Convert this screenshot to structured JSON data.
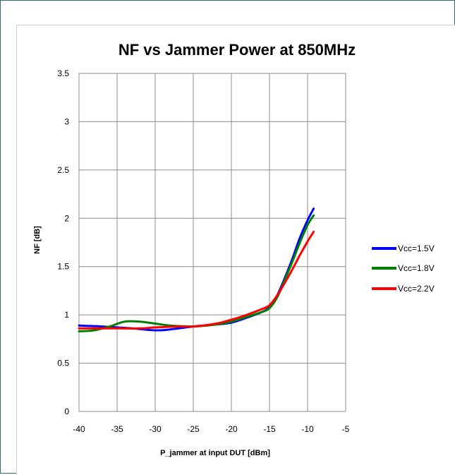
{
  "chart_data": {
    "type": "line",
    "title": "NF vs Jammer Power at 850MHz",
    "xlabel": "P_jammer at input DUT [dBm]",
    "ylabel": "NF [dB]",
    "xlim": [
      -40,
      -5
    ],
    "ylim": [
      0,
      3.5
    ],
    "xticks": [
      -40,
      -35,
      -30,
      -25,
      -20,
      -15,
      -10,
      -5
    ],
    "yticks": [
      0,
      0.5,
      1,
      1.5,
      2,
      2.5,
      3,
      3.5
    ],
    "xtick_labels": [
      "-40",
      "-35",
      "-30",
      "-25",
      "-20",
      "-15",
      "-10",
      "-5"
    ],
    "ytick_labels": [
      "0",
      "0.5",
      "1",
      "1.5",
      "2",
      "2.5",
      "3",
      "3.5"
    ],
    "grid": true,
    "legend_position": "right",
    "series": [
      {
        "name": "Vcc=1.5V",
        "color": "#0000ff",
        "x": [
          -40,
          -37,
          -35,
          -33,
          -30,
          -28,
          -25,
          -22,
          -20,
          -18,
          -16,
          -15,
          -14,
          -13,
          -12,
          -11,
          -10,
          -9.2
        ],
        "y": [
          0.89,
          0.88,
          0.87,
          0.86,
          0.84,
          0.85,
          0.88,
          0.9,
          0.92,
          0.97,
          1.03,
          1.08,
          1.2,
          1.38,
          1.58,
          1.8,
          1.98,
          2.1
        ]
      },
      {
        "name": "Vcc=1.8V",
        "color": "#008000",
        "x": [
          -40,
          -38,
          -36,
          -34,
          -32,
          -30,
          -28,
          -25,
          -22,
          -20,
          -18,
          -16,
          -15,
          -14,
          -13,
          -12,
          -11,
          -10,
          -9.2
        ],
        "y": [
          0.83,
          0.84,
          0.88,
          0.93,
          0.93,
          0.91,
          0.89,
          0.88,
          0.9,
          0.93,
          0.98,
          1.03,
          1.07,
          1.18,
          1.36,
          1.55,
          1.75,
          1.93,
          2.03
        ]
      },
      {
        "name": "Vcc=2.2V",
        "color": "#ff0000",
        "x": [
          -40,
          -37,
          -35,
          -32,
          -30,
          -27,
          -25,
          -22,
          -20,
          -18,
          -16,
          -15,
          -14,
          -13,
          -12,
          -11,
          -10,
          -9.2
        ],
        "y": [
          0.86,
          0.86,
          0.86,
          0.86,
          0.87,
          0.88,
          0.88,
          0.91,
          0.95,
          1.0,
          1.06,
          1.1,
          1.2,
          1.33,
          1.47,
          1.62,
          1.76,
          1.86
        ]
      }
    ]
  }
}
